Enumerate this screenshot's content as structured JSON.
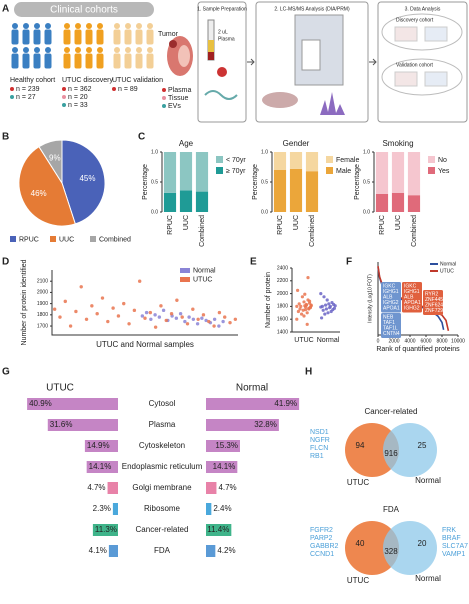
{
  "panel_labels": [
    "A",
    "B",
    "C",
    "D",
    "E",
    "F",
    "G",
    "H"
  ],
  "panel_a": {
    "banner": "Clinical cohorts",
    "cohorts": [
      {
        "name": "Healthy cohort",
        "counts": [
          "n = 239",
          "n = 27"
        ]
      },
      {
        "name": "UTUC discovery",
        "counts": [
          "n = 362",
          "n = 20",
          "n = 33"
        ]
      },
      {
        "name": "UTUC validation",
        "counts": [
          "n = 89"
        ]
      }
    ],
    "tumor": "Tumor",
    "sample_types": [
      "Plasma",
      "Tissue",
      "EVs"
    ],
    "steps": [
      "1. Sample Preparation",
      "2. LC-MS/MS  Analysis (DIA/PRM)",
      "3. Data Analysis"
    ],
    "plasma_volume": [
      "2 uL",
      "Plasma"
    ],
    "analysis": [
      "Discovery cohort",
      "Validation cohort"
    ]
  },
  "chart_data": [
    {
      "type": "pie",
      "categories": [
        "RPUC",
        "UUC",
        "Combined"
      ],
      "values": [
        45,
        46,
        9
      ],
      "value_labels": [
        "45%",
        "46%",
        "9%"
      ],
      "colors": [
        "#4a62b8",
        "#e57b35",
        "#a6a6a6"
      ],
      "legend": "bottom"
    },
    {
      "type": "stacked_bar",
      "title": "Age",
      "categories": [
        "RPUC",
        "UUC",
        "Combined"
      ],
      "ylabel": "Percentage",
      "ylim": [
        0,
        1
      ],
      "yticks": [
        {
          "value": 0,
          "label": "0.0"
        },
        {
          "value": 0.5,
          "label": "0.5"
        },
        {
          "value": 1,
          "label": "1.0"
        }
      ],
      "series": [
        {
          "name": "≥ 70yr",
          "color": "#1f9b96",
          "values": [
            0.32,
            0.36,
            0.34
          ]
        },
        {
          "name": "< 70yr",
          "color": "#8cc6c2",
          "values": [
            0.68,
            0.64,
            0.66
          ]
        }
      ],
      "legend": "right"
    },
    {
      "type": "stacked_bar",
      "title": "Gender",
      "categories": [
        "RPUC",
        "UUC",
        "Combined"
      ],
      "ylabel": "Percentage",
      "ylim": [
        0,
        1
      ],
      "yticks": [
        {
          "value": 0,
          "label": "0.0"
        },
        {
          "value": 0.5,
          "label": "0.5"
        },
        {
          "value": 1,
          "label": "1.0"
        }
      ],
      "series": [
        {
          "name": "Male",
          "color": "#eba63a",
          "values": [
            0.7,
            0.72,
            0.68
          ]
        },
        {
          "name": "Female",
          "color": "#f5d7a0",
          "values": [
            0.3,
            0.28,
            0.32
          ]
        }
      ],
      "legend": "right"
    },
    {
      "type": "stacked_bar",
      "title": "Smoking",
      "categories": [
        "RPUC",
        "UUC",
        "Combined"
      ],
      "ylabel": "Percentage",
      "ylim": [
        0,
        1
      ],
      "yticks": [
        {
          "value": 0,
          "label": "0.0"
        },
        {
          "value": 0.5,
          "label": "0.5"
        },
        {
          "value": 1,
          "label": "1.0"
        }
      ],
      "series": [
        {
          "name": "Yes",
          "color": "#e06a7a",
          "values": [
            0.3,
            0.32,
            0.28
          ]
        },
        {
          "name": "No",
          "color": "#f5c6cf",
          "values": [
            0.7,
            0.68,
            0.72
          ]
        }
      ],
      "legend": "right"
    },
    {
      "type": "scatter",
      "ylabel": "Number of protein identified",
      "xlabel": "UTUC and Normal samples",
      "xlim": [
        0,
        350
      ],
      "ylim": [
        1620,
        2200
      ],
      "yticks": [
        1700,
        1800,
        1900,
        2000,
        2100
      ],
      "legend": "top-right",
      "series": [
        {
          "name": "Normal",
          "color": "#8a84d6",
          "x": [
            170,
            178,
            186,
            194,
            202,
            210,
            218,
            226,
            234,
            242,
            250,
            258,
            266,
            274,
            282,
            290,
            298,
            306,
            314,
            322
          ],
          "values": [
            1790,
            1820,
            1760,
            1800,
            1780,
            1840,
            1750,
            1790,
            1770,
            1810,
            1740,
            1780,
            1760,
            1720,
            1770,
            1750,
            1730,
            1760,
            1700,
            1740
          ]
        },
        {
          "name": "UTUC",
          "color": "#e9744f",
          "x": [
            5,
            15,
            25,
            35,
            45,
            55,
            65,
            75,
            85,
            95,
            105,
            115,
            125,
            135,
            145,
            155,
            165,
            175,
            185,
            195,
            205,
            215,
            225,
            235,
            245,
            255,
            265,
            275,
            285,
            295,
            305,
            315,
            325,
            335,
            345
          ],
          "values": [
            1850,
            1780,
            1920,
            1700,
            1830,
            2050,
            1760,
            1880,
            1810,
            1950,
            1740,
            1860,
            1790,
            1900,
            1720,
            1840,
            2100,
            1770,
            1820,
            1690,
            1880,
            1750,
            1810,
            1930,
            1780,
            1720,
            1850,
            1760,
            1800,
            1740,
            1700,
            1820,
            1780,
            1730,
            1760
          ]
        }
      ]
    },
    {
      "type": "strip",
      "ylabel": "Number of protein",
      "categories": [
        "UTUC",
        "Normal"
      ],
      "colors": [
        "#e9744f",
        "#6a64c6"
      ],
      "ylim": [
        1400,
        2400
      ],
      "yticks": [
        1400,
        1600,
        1800,
        2000,
        2200,
        2400
      ],
      "values": [
        [
          1800,
          1820,
          1780,
          1850,
          1760,
          1900,
          1700,
          1830,
          1790,
          1810,
          1870,
          1740,
          1950,
          1680,
          1800,
          1760,
          1840,
          1720,
          2050,
          1600,
          1810,
          1790,
          1880,
          1770,
          2250,
          1520,
          1820,
          1750,
          1990,
          1650
        ],
        [
          1790,
          1810,
          1770,
          1830,
          1750,
          1860,
          1720,
          1800,
          1780,
          1840,
          1700,
          1900,
          1760,
          1820,
          1680,
          1950,
          1740,
          1800,
          1620,
          2000
        ]
      ]
    },
    {
      "type": "line",
      "ylabel": "Intensity (Log10 FOT)",
      "xlabel": "Rank of quantified proteins",
      "xlim": [
        0,
        10000
      ],
      "ylim": [
        -3,
        4
      ],
      "xticks": [
        0,
        2000,
        4000,
        6000,
        8000,
        10000
      ],
      "legend": "top-right",
      "series": [
        {
          "name": "Normal",
          "color": "#2c4f9e",
          "x": [
            1,
            200,
            500,
            1000,
            2000,
            3000,
            4000,
            5000,
            6000,
            7000,
            7500,
            8000,
            8200
          ],
          "values": [
            3.5,
            2.5,
            1.8,
            1.3,
            0.8,
            0.4,
            0.1,
            -0.2,
            -0.5,
            -0.9,
            -1.2,
            -1.8,
            -2.5
          ]
        },
        {
          "name": "UTUC",
          "color": "#c0392b",
          "x": [
            1,
            200,
            500,
            1000,
            2000,
            3000,
            4000,
            5000,
            6000,
            7000,
            8000,
            8500,
            8800
          ],
          "values": [
            3.6,
            2.6,
            1.9,
            1.4,
            0.9,
            0.5,
            0.2,
            -0.1,
            -0.4,
            -0.7,
            -1.1,
            -1.6,
            -2.6
          ]
        }
      ],
      "annotations": [
        {
          "color": "#6f95cf",
          "lines": [
            "IGKC",
            "IGHG1",
            "ALB",
            "IGHG2",
            "APOA1"
          ]
        },
        {
          "color": "#e0603e",
          "lines": [
            "IGKC",
            "IGHG1",
            "ALB",
            "APOA1",
            "IGHG2"
          ]
        },
        {
          "color": "#6f95cf",
          "lines": [
            "NEB",
            "TAF1",
            "TAF1L",
            "CNTN4"
          ]
        },
        {
          "color": "#e0603e",
          "lines": [
            "RYR2",
            "ZNF445",
            "ZNF624",
            "ZNF729"
          ]
        }
      ]
    },
    {
      "type": "mirror_bar",
      "categories": [
        "Cytosol",
        "Plasma",
        "Cytoskeleton",
        "Endoplasmic reticulum",
        "Golgi membrane",
        "Ribosome",
        "Cancer-related",
        "FDA"
      ],
      "colors": [
        "#c585c5",
        "#c585c5",
        "#c585c5",
        "#c585c5",
        "#e882a8",
        "#4aa8dc",
        "#3fb48a",
        "#5a9ad6"
      ],
      "xlim": [
        0,
        45
      ],
      "series": [
        {
          "name": "UTUC",
          "values": [
            40.9,
            31.6,
            14.9,
            14.1,
            4.7,
            2.3,
            11.3,
            4.1
          ],
          "value_labels": [
            "40.9%",
            "31.6%",
            "14.9%",
            "14.1%",
            "4.7%",
            "2.3%",
            "11.3%",
            "4.1%"
          ]
        },
        {
          "name": "Normal",
          "values": [
            41.9,
            32.8,
            15.3,
            14.1,
            4.7,
            2.4,
            11.4,
            4.2
          ],
          "value_labels": [
            "41.9%",
            "32.8%",
            "15.3%",
            "14.1%",
            "4.7%",
            "2.4%",
            "11.4%",
            "4.2%"
          ]
        }
      ]
    }
  ],
  "panel_h": {
    "venns": [
      {
        "title": "Cancer-related",
        "left": "UTUC",
        "right": "Normal",
        "left_only": "94",
        "both": "916",
        "right_only": "25",
        "left_genes": [
          "NSD1",
          "NGFR",
          "FLCN",
          "RB1"
        ],
        "right_genes": []
      },
      {
        "title": "FDA",
        "left": "UTUC",
        "right": "Normal",
        "left_only": "40",
        "both": "328",
        "right_only": "20",
        "left_genes": [
          "FGFR2",
          "PARP2",
          "GABBR2",
          "CCND1"
        ],
        "right_genes": [
          "FRK",
          "BRAF",
          "SLC7A7",
          "VAMP1"
        ]
      }
    ]
  }
}
